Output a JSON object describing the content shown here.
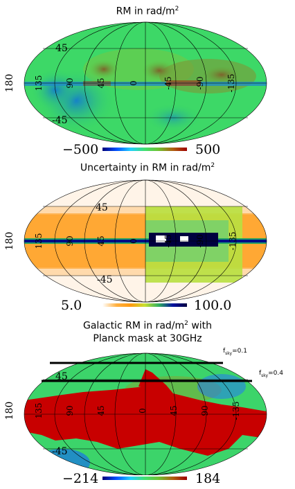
{
  "panels": [
    {
      "title": "RM in rad/m",
      "title_sup": "2",
      "colorbar": {
        "min": "−500",
        "max": "500"
      },
      "labels": {
        "lat_n": "45",
        "lat_s": "-45",
        "lon": [
          "180",
          "135",
          "90",
          "45",
          "0",
          "-45",
          "-90",
          "-135"
        ]
      }
    },
    {
      "title": "Uncertainty in RM in rad/m",
      "title_sup": "2",
      "colorbar": {
        "min": "5.0",
        "max": "100.0"
      },
      "labels": {
        "lat_n": "45",
        "lat_s": "-45",
        "lon": [
          "180",
          "135",
          "90",
          "45",
          "0",
          "-45",
          "-90",
          "-135"
        ]
      }
    },
    {
      "title_line1": "Galactic RM in rad/m",
      "title_sup": "2",
      "title_line1_suffix": " with",
      "title_line2": "Planck mask at 30GHz",
      "colorbar": {
        "min": "−214",
        "max": "184"
      },
      "labels": {
        "lat_n": "45",
        "lat_s": "-45",
        "lon": [
          "180",
          "135",
          "90",
          "45",
          "0",
          "45",
          "90",
          "-135"
        ]
      },
      "fsky": [
        {
          "prefix": "f",
          "sub": "sky",
          "value": "=0.1"
        },
        {
          "prefix": "f",
          "sub": "sky",
          "value": "=0.4"
        }
      ]
    }
  ],
  "colors": {
    "rm_scale": [
      "#00007a",
      "#0050ff",
      "#20d0ff",
      "#40e070",
      "#70c030",
      "#b06010",
      "#a00000"
    ],
    "unc_scale": [
      "#ffffff",
      "#ffb040",
      "#ff9a10",
      "#c8e030",
      "#30b060",
      "#0010a0",
      "#000040"
    ],
    "mask": "#c80000",
    "background": "#3cd46a"
  }
}
